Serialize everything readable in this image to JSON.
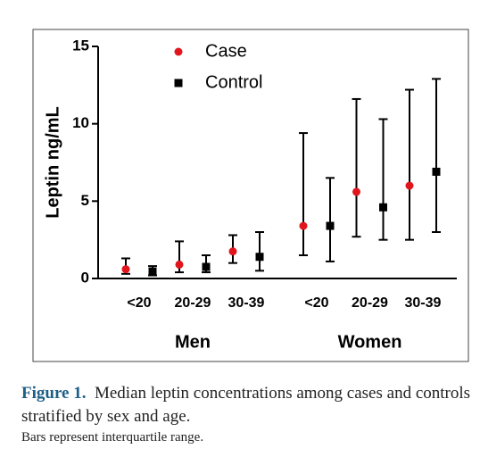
{
  "chart_data": {
    "type": "errorbar",
    "y_label": "Leptin ng/mL",
    "groups": [
      {
        "name": "Men",
        "categories": [
          "<20",
          "20-29",
          "30-39"
        ]
      },
      {
        "name": "Women",
        "categories": [
          "<20",
          "20-29",
          "30-39"
        ]
      }
    ],
    "series": [
      {
        "name": "Case",
        "color": "#e0161c",
        "marker": "circle",
        "values": [
          0.6,
          0.9,
          1.75,
          3.4,
          5.6,
          6.0
        ],
        "q1": [
          0.3,
          0.4,
          1.0,
          1.5,
          2.7,
          2.5
        ],
        "q3": [
          1.3,
          2.4,
          2.8,
          9.4,
          11.6,
          12.2
        ]
      },
      {
        "name": "Control",
        "color": "#000000",
        "marker": "square",
        "values": [
          0.45,
          0.75,
          1.4,
          3.4,
          4.6,
          6.9
        ],
        "q1": [
          0.2,
          0.4,
          0.5,
          1.1,
          2.5,
          3.0
        ],
        "q3": [
          0.8,
          1.5,
          3.0,
          6.5,
          10.3,
          12.9
        ]
      }
    ],
    "ylim": [
      0,
      15
    ],
    "yticks": [
      0,
      5,
      10,
      15
    ]
  },
  "caption": {
    "label": "Figure 1.",
    "text": "Median leptin concentrations among cases and controls stratified by sex and age.",
    "note": "Bars represent interquartile range."
  }
}
